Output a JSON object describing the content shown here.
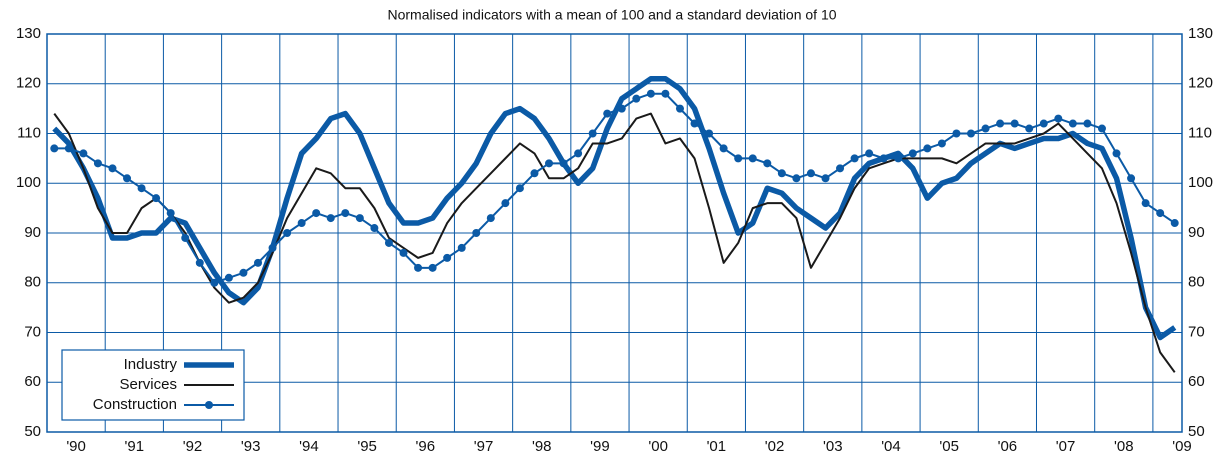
{
  "chart_data": {
    "type": "line",
    "title": "Normalised indicators with a mean of 100 and a standard deviation of 10",
    "categories": [
      null,
      "'90",
      null,
      null,
      null,
      "'91",
      null,
      null,
      null,
      "'92",
      null,
      null,
      null,
      "'93",
      null,
      null,
      null,
      "'94",
      null,
      null,
      null,
      "'95",
      null,
      null,
      null,
      "'96",
      null,
      null,
      null,
      "'97",
      null,
      null,
      null,
      "'98",
      null,
      null,
      null,
      "'99",
      null,
      null,
      null,
      "'00",
      null,
      null,
      null,
      "'01",
      null,
      null,
      null,
      "'02",
      null,
      null,
      null,
      "'03",
      null,
      null,
      null,
      "'04",
      null,
      null,
      null,
      "'05",
      null,
      null,
      null,
      "'06",
      null,
      null,
      null,
      "'07",
      null,
      null,
      null,
      "'08",
      null,
      null,
      null,
      "'09"
    ],
    "series": [
      {
        "name": "Industry",
        "color": "#0b5aa6",
        "values": [
          111,
          108,
          103,
          97,
          89,
          89,
          90,
          90,
          93,
          92,
          87,
          82,
          78,
          76,
          79,
          87,
          97,
          106,
          109,
          113,
          114,
          110,
          103,
          96,
          92,
          92,
          93,
          97,
          100,
          104,
          110,
          114,
          115,
          113,
          109,
          104,
          100,
          103,
          111,
          117,
          119,
          121,
          121,
          119,
          115,
          107,
          98,
          90,
          92,
          99,
          98,
          95,
          93,
          91,
          94,
          101,
          104,
          105,
          106,
          103,
          97,
          100,
          101,
          104,
          106,
          108,
          107,
          108,
          109,
          109,
          110,
          108,
          107,
          101,
          89,
          75,
          69,
          71
        ]
      },
      {
        "name": "Services",
        "color": "#1a1a1a",
        "values": [
          114,
          110,
          103,
          95,
          90,
          90,
          95,
          97,
          94,
          90,
          84,
          79,
          76,
          77,
          80,
          86,
          93,
          98,
          103,
          102,
          99,
          99,
          95,
          89,
          87,
          85,
          86,
          92,
          96,
          99,
          102,
          105,
          108,
          106,
          101,
          101,
          103,
          108,
          108,
          109,
          113,
          114,
          108,
          109,
          105,
          95,
          84,
          88,
          95,
          96,
          96,
          93,
          83,
          88,
          93,
          99,
          103,
          104,
          105,
          105,
          105,
          105,
          104,
          106,
          108,
          108,
          108,
          109,
          110,
          112,
          109,
          106,
          103,
          96,
          86,
          75,
          66,
          62
        ]
      },
      {
        "name": "Construction",
        "color": "#0b5aa6",
        "values": [
          107,
          107,
          106,
          104,
          103,
          101,
          99,
          97,
          94,
          89,
          84,
          80,
          81,
          82,
          84,
          87,
          90,
          92,
          94,
          93,
          94,
          93,
          91,
          88,
          86,
          83,
          83,
          85,
          87,
          90,
          93,
          96,
          99,
          102,
          104,
          104,
          106,
          110,
          114,
          115,
          117,
          118,
          118,
          115,
          112,
          110,
          107,
          105,
          105,
          104,
          102,
          101,
          102,
          101,
          103,
          105,
          106,
          105,
          105,
          106,
          107,
          108,
          110,
          110,
          111,
          112,
          112,
          111,
          112,
          113,
          112,
          112,
          111,
          106,
          101,
          96,
          94,
          92
        ]
      }
    ],
    "ylim": [
      50,
      130
    ],
    "yticks": [
      50,
      60,
      70,
      80,
      90,
      100,
      110,
      120,
      130
    ],
    "grid": true
  }
}
